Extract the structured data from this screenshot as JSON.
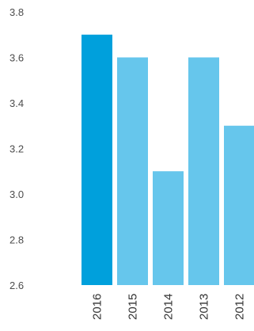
{
  "chart_data": {
    "type": "bar",
    "categories": [
      "2016",
      "2015",
      "2014",
      "2013",
      "2012"
    ],
    "values": [
      3.7,
      3.6,
      3.1,
      3.6,
      3.3
    ],
    "ylim": [
      2.6,
      3.8
    ],
    "yticks": [
      "2.6",
      "2.8",
      "3.0",
      "3.2",
      "3.4",
      "3.6",
      "3.8"
    ],
    "grid": false,
    "highlight_index": 0,
    "colors": {
      "highlight": "#00a0dc",
      "bar": "#66c6ec",
      "tick_text": "#4d4d4d"
    }
  }
}
